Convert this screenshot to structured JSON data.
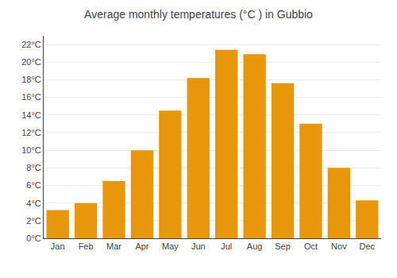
{
  "chart_data": {
    "type": "bar",
    "title": "Average monthly temperatures (°C ) in Gubbio",
    "categories": [
      "Jan",
      "Feb",
      "Mar",
      "Apr",
      "May",
      "Jun",
      "Jul",
      "Aug",
      "Sep",
      "Oct",
      "Nov",
      "Dec"
    ],
    "values": [
      3.2,
      4.0,
      6.5,
      10.0,
      14.5,
      18.2,
      21.4,
      20.9,
      17.6,
      13.0,
      8.0,
      4.3
    ],
    "color": "#E8960A",
    "ylim": [
      0,
      23
    ],
    "yticks": [
      {
        "value": 0,
        "label": "0°C"
      },
      {
        "value": 2,
        "label": "2°C"
      },
      {
        "value": 4,
        "label": "4°C"
      },
      {
        "value": 6,
        "label": "6°C"
      },
      {
        "value": 8,
        "label": "8°C"
      },
      {
        "value": 10,
        "label": "10°C"
      },
      {
        "value": 12,
        "label": "12°C"
      },
      {
        "value": 14,
        "label": "14°C"
      },
      {
        "value": 16,
        "label": "16°C"
      },
      {
        "value": 18,
        "label": "18°C"
      },
      {
        "value": 20,
        "label": "20°C"
      },
      {
        "value": 22,
        "label": "22°C"
      }
    ],
    "grid": true
  }
}
